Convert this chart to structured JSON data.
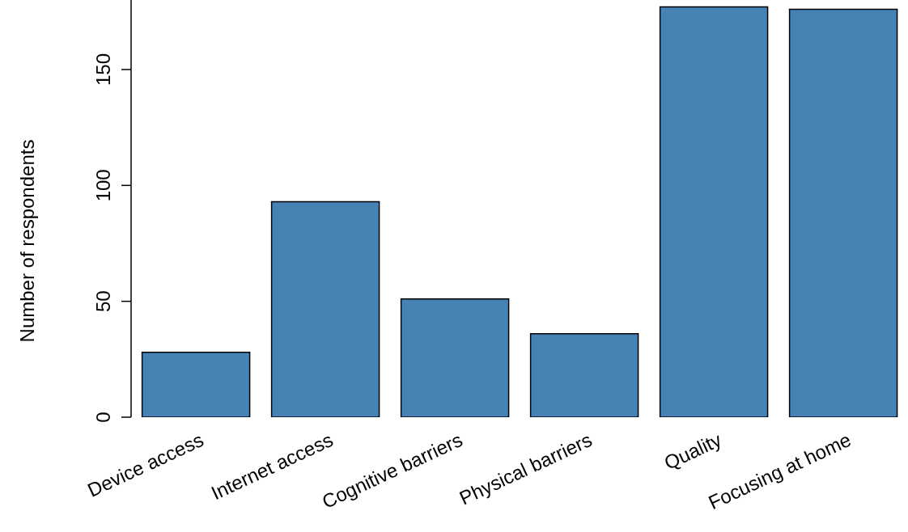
{
  "chart_data": {
    "type": "bar",
    "ylabel": "Number of respondents",
    "categories": [
      "Device access",
      "Internet access",
      "Cognitive barriers",
      "Physical barriers",
      "Quality",
      "Focusing at home"
    ],
    "values": [
      28,
      93,
      51,
      36,
      177,
      176
    ],
    "color": "#4682b4",
    "ylim": [
      0,
      180
    ],
    "yticks": [
      0,
      50,
      100,
      150
    ],
    "grid": false,
    "legend": false
  }
}
